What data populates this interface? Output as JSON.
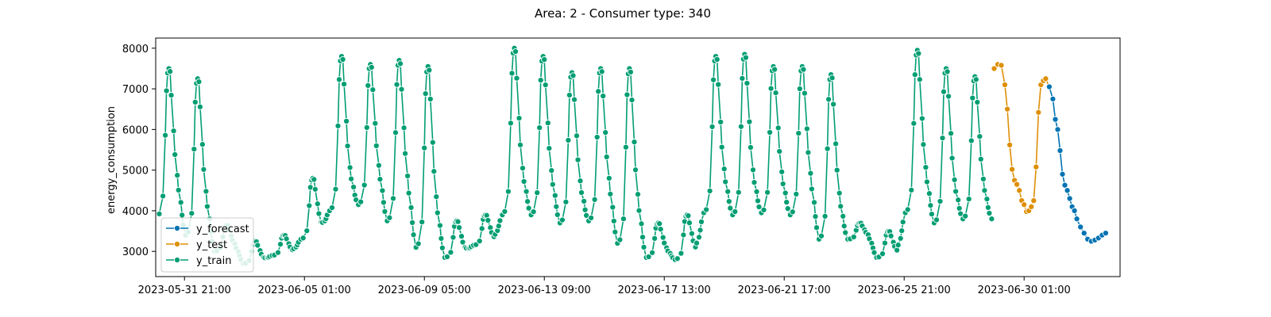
{
  "chart_data": {
    "type": "line",
    "title": "Area: 2 - Consumer type: 340",
    "xlabel": "",
    "ylabel": "energy_consumption",
    "xlim": [
      "2023-05-30 21:00",
      "2023-07-03 09:00"
    ],
    "ylim": [
      2380,
      8250
    ],
    "x_tick_labels": [
      "2023-05-31 21:00",
      "2023-06-05 01:00",
      "2023-06-09 05:00",
      "2023-06-13 09:00",
      "2023-06-17 13:00",
      "2023-06-21 17:00",
      "2023-06-25 21:00",
      "2023-06-30 01:00"
    ],
    "y_ticks": [
      3000,
      4000,
      5000,
      6000,
      7000,
      8000
    ],
    "grid": false,
    "legend_position": "lower-left",
    "series": [
      {
        "name": "y_forecast",
        "color": "#0173b2",
        "points": [
          [
            "2023-06-30 22:00",
            7050
          ],
          [
            "2023-07-01 01:00",
            6750
          ],
          [
            "2023-07-01 03:00",
            6250
          ],
          [
            "2023-07-01 05:00",
            6000
          ],
          [
            "2023-07-01 07:00",
            5480
          ],
          [
            "2023-07-01 09:00",
            4900
          ],
          [
            "2023-07-01 11:00",
            4630
          ],
          [
            "2023-07-01 13:00",
            4500
          ],
          [
            "2023-07-01 15:00",
            4300
          ],
          [
            "2023-07-01 17:00",
            4100
          ],
          [
            "2023-07-01 19:00",
            4000
          ],
          [
            "2023-07-01 21:00",
            3800
          ],
          [
            "2023-07-02 00:00",
            3600
          ],
          [
            "2023-07-02 03:00",
            3450
          ],
          [
            "2023-07-02 06:00",
            3300
          ],
          [
            "2023-07-02 09:00",
            3250
          ],
          [
            "2023-07-02 12:00",
            3280
          ],
          [
            "2023-07-02 15:00",
            3330
          ],
          [
            "2023-07-02 18:00",
            3400
          ],
          [
            "2023-07-02 21:00",
            3450
          ]
        ]
      },
      {
        "name": "y_test",
        "color": "#de8f05",
        "points": [
          [
            "2023-06-29 00:00",
            7500
          ],
          [
            "2023-06-29 03:00",
            7600
          ],
          [
            "2023-06-29 06:00",
            7580
          ],
          [
            "2023-06-29 09:00",
            7100
          ],
          [
            "2023-06-29 11:00",
            6500
          ],
          [
            "2023-06-29 13:00",
            5620
          ],
          [
            "2023-06-29 15:00",
            5020
          ],
          [
            "2023-06-29 17:00",
            4750
          ],
          [
            "2023-06-29 19:00",
            4650
          ],
          [
            "2023-06-29 21:00",
            4500
          ],
          [
            "2023-06-29 23:00",
            4250
          ],
          [
            "2023-06-30 01:00",
            4150
          ],
          [
            "2023-06-30 03:00",
            3980
          ],
          [
            "2023-06-30 05:00",
            4000
          ],
          [
            "2023-06-30 07:00",
            4100
          ],
          [
            "2023-06-30 09:00",
            4250
          ],
          [
            "2023-06-30 11:00",
            5080
          ],
          [
            "2023-06-30 13:00",
            6420
          ],
          [
            "2023-06-30 15:00",
            7100
          ],
          [
            "2023-06-30 17:00",
            7200
          ],
          [
            "2023-06-30 19:00",
            7250
          ],
          [
            "2023-06-30 22:00",
            7050
          ]
        ]
      },
      {
        "name": "y_train",
        "color": "#029e73",
        "daily": [
          {
            "date": "2023-05-31",
            "peak": 7500,
            "min": 3850
          },
          {
            "date": "2023-06-01",
            "peak": 7250,
            "min": 3400
          },
          {
            "date": "2023-06-02",
            "peak": 3650,
            "min": 3000
          },
          {
            "date": "2023-06-03",
            "peak": 3250,
            "min": 2700
          },
          {
            "date": "2023-06-04",
            "peak": 3400,
            "min": 2900
          },
          {
            "date": "2023-06-05",
            "peak": 4800,
            "min": 3300
          },
          {
            "date": "2023-06-06",
            "peak": 7800,
            "min": 4000
          },
          {
            "date": "2023-06-07",
            "peak": 7600,
            "min": 4150
          },
          {
            "date": "2023-06-08",
            "peak": 7700,
            "min": 3750
          },
          {
            "date": "2023-06-09",
            "peak": 7550,
            "min": 3100
          },
          {
            "date": "2023-06-10",
            "peak": 3750,
            "min": 2850
          },
          {
            "date": "2023-06-11",
            "peak": 3900,
            "min": 3150
          },
          {
            "date": "2023-06-12",
            "peak": 8000,
            "min": 3900
          },
          {
            "date": "2023-06-13",
            "peak": 7800,
            "min": 3900
          },
          {
            "date": "2023-06-14",
            "peak": 7400,
            "min": 3700
          },
          {
            "date": "2023-06-15",
            "peak": 7500,
            "min": 3750
          },
          {
            "date": "2023-06-16",
            "peak": 7500,
            "min": 3200
          },
          {
            "date": "2023-06-17",
            "peak": 3700,
            "min": 2850
          },
          {
            "date": "2023-06-18",
            "peak": 3900,
            "min": 2800
          },
          {
            "date": "2023-06-19",
            "peak": 7800,
            "min": 3950
          },
          {
            "date": "2023-06-20",
            "peak": 7850,
            "min": 3900
          },
          {
            "date": "2023-06-21",
            "peak": 7550,
            "min": 3950
          },
          {
            "date": "2023-06-22",
            "peak": 7550,
            "min": 3900
          },
          {
            "date": "2023-06-23",
            "peak": 7350,
            "min": 3300
          },
          {
            "date": "2023-06-24",
            "peak": 3700,
            "min": 3300
          },
          {
            "date": "2023-06-25",
            "peak": 3500,
            "min": 2850
          },
          {
            "date": "2023-06-26",
            "peak": 7950,
            "min": 3950
          },
          {
            "date": "2023-06-27",
            "peak": 7500,
            "min": 3700
          },
          {
            "date": "2023-06-28",
            "peak": 7300,
            "min": 3800
          }
        ]
      }
    ]
  }
}
